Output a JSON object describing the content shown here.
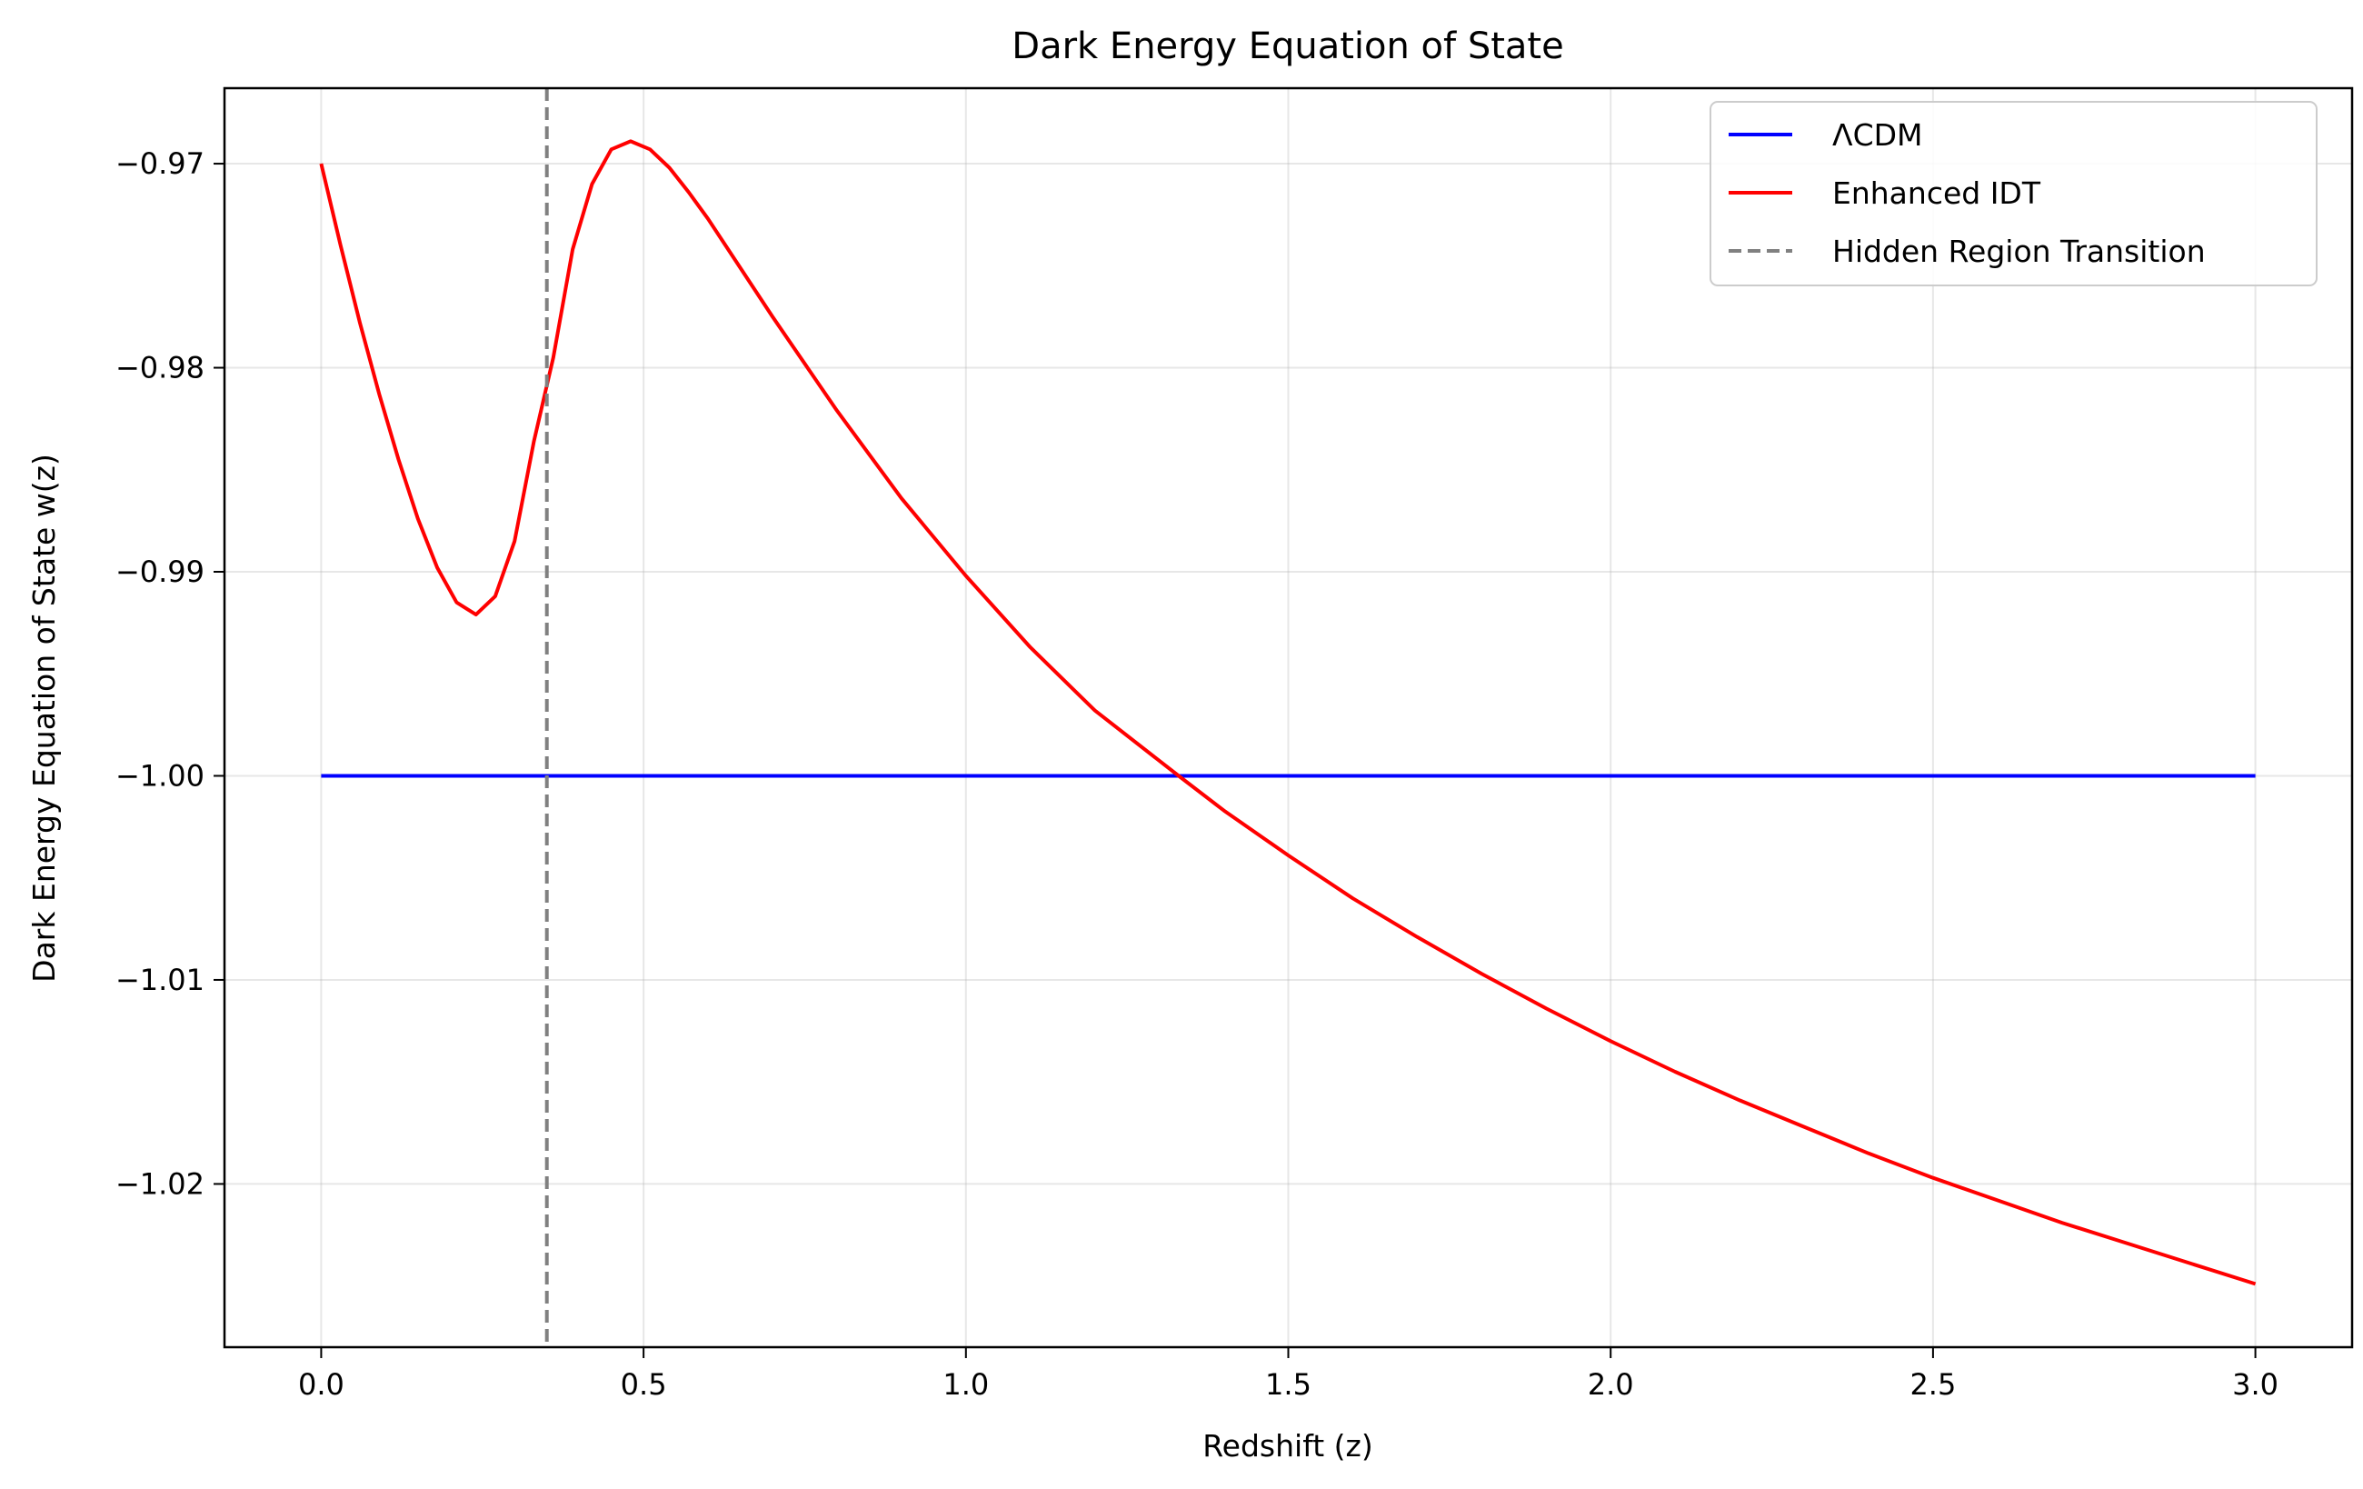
{
  "chart_data": {
    "type": "line",
    "title": "Dark Energy Equation of State",
    "xlabel": "Redshift (z)",
    "ylabel": "Dark Energy Equation of State w(z)",
    "xlim": [
      -0.15,
      3.15
    ],
    "ylim": [
      -1.028,
      -0.9663
    ],
    "xticks": [
      0.0,
      0.5,
      1.0,
      1.5,
      2.0,
      2.5,
      3.0
    ],
    "xtick_labels": [
      "0.0",
      "0.5",
      "1.0",
      "1.5",
      "2.0",
      "2.5",
      "3.0"
    ],
    "yticks": [
      -0.97,
      -0.98,
      -0.99,
      -1.0,
      -1.01,
      -1.02
    ],
    "ytick_labels": [
      "−0.97",
      "−0.98",
      "−0.99",
      "−1.00",
      "−1.01",
      "−1.02"
    ],
    "grid": true,
    "legend_position": "top-right",
    "series": [
      {
        "name": "ΛCDM",
        "color": "#0000ff",
        "style": "solid",
        "x": [
          0.0,
          3.0
        ],
        "y": [
          -1.0,
          -1.0
        ]
      },
      {
        "name": "Enhanced IDT",
        "color": "#ff0000",
        "style": "solid",
        "x": [
          0.0,
          0.03,
          0.06,
          0.09,
          0.12,
          0.15,
          0.18,
          0.21,
          0.24,
          0.27,
          0.3,
          0.33,
          0.36,
          0.39,
          0.42,
          0.45,
          0.48,
          0.51,
          0.54,
          0.57,
          0.6,
          0.7,
          0.8,
          0.9,
          1.0,
          1.1,
          1.2,
          1.33,
          1.4,
          1.5,
          1.6,
          1.7,
          1.8,
          1.9,
          2.0,
          2.1,
          2.2,
          2.3,
          2.4,
          2.5,
          2.6,
          2.7,
          2.8,
          2.9,
          3.0
        ],
        "y": [
          -0.97,
          -0.974,
          -0.9778,
          -0.9813,
          -0.9845,
          -0.9874,
          -0.9898,
          -0.9915,
          -0.9921,
          -0.9912,
          -0.9885,
          -0.9836,
          -0.9795,
          -0.9742,
          -0.971,
          -0.9693,
          -0.9689,
          -0.9693,
          -0.9702,
          -0.9714,
          -0.9727,
          -0.9775,
          -0.9821,
          -0.9864,
          -0.9902,
          -0.9937,
          -0.9968,
          -1.0,
          -1.0017,
          -1.0039,
          -1.006,
          -1.0079,
          -1.0097,
          -1.0114,
          -1.013,
          -1.0145,
          -1.0159,
          -1.0172,
          -1.0185,
          -1.0197,
          -1.0208,
          -1.0219,
          -1.0229,
          -1.0239,
          -1.0249
        ]
      },
      {
        "name": "Hidden Region Transition",
        "color": "#808080",
        "style": "dashed",
        "vline_x": 0.35
      }
    ]
  }
}
